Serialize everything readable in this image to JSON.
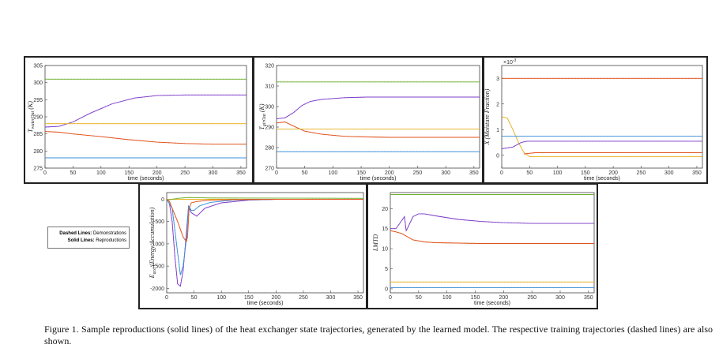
{
  "legend": {
    "line1_key": "Dashed Lines:",
    "line1_text": "Demonstrations",
    "line2_key": "Solid Lines:",
    "line2_text": "Reproductions"
  },
  "caption": "Figure 1.  Sample reproductions (solid lines) of the heat exchanger state trajectories, generated by the learned model. The respective training trajectories (dashed lines) are also shown.",
  "colors": {
    "purple": "#7d3cc8",
    "orange": "#e0501a",
    "yellow": "#e8b020",
    "green": "#70b030",
    "blue": "#3a8fd8"
  },
  "chart_data": [
    {
      "id": "p1",
      "type": "line",
      "ylabel": "T_{waterOut} (K)",
      "xlabel": "time (seconds)",
      "xlim": [
        0,
        360
      ],
      "ylim": [
        275,
        305
      ],
      "xticks": [
        0,
        50,
        100,
        150,
        200,
        250,
        300,
        350
      ],
      "yticks": [
        275,
        280,
        285,
        290,
        295,
        300,
        305
      ],
      "series": [
        {
          "color": "green",
          "x": [
            0,
            360
          ],
          "y": [
            301,
            301
          ]
        },
        {
          "color": "purple",
          "x": [
            0,
            25,
            50,
            80,
            120,
            160,
            200,
            250,
            300,
            360
          ],
          "y": [
            287,
            287.2,
            288.5,
            291,
            293.8,
            295.5,
            296.2,
            296.4,
            296.4,
            296.4
          ]
        },
        {
          "color": "yellow",
          "x": [
            0,
            360
          ],
          "y": [
            288,
            288
          ]
        },
        {
          "color": "orange",
          "x": [
            0,
            25,
            50,
            100,
            150,
            200,
            250,
            300,
            360
          ],
          "y": [
            285.7,
            285.5,
            285,
            284.2,
            283.3,
            282.6,
            282.2,
            282,
            282
          ]
        },
        {
          "color": "blue",
          "x": [
            0,
            360
          ],
          "y": [
            278,
            278
          ]
        }
      ]
    },
    {
      "id": "p2",
      "type": "line",
      "ylabel": "T_{airOut} (K)",
      "xlabel": "time (seconds)",
      "xlim": [
        0,
        360
      ],
      "ylim": [
        270,
        320
      ],
      "xticks": [
        0,
        50,
        100,
        150,
        200,
        250,
        300,
        350
      ],
      "yticks": [
        270,
        280,
        290,
        300,
        310,
        320
      ],
      "series": [
        {
          "color": "green",
          "x": [
            0,
            360
          ],
          "y": [
            312,
            312
          ]
        },
        {
          "color": "purple",
          "x": [
            0,
            15,
            30,
            45,
            60,
            80,
            120,
            160,
            200,
            360
          ],
          "y": [
            294,
            294.5,
            297,
            300.5,
            302.5,
            303.5,
            304.3,
            304.6,
            304.6,
            304.6
          ]
        },
        {
          "color": "orange",
          "x": [
            0,
            15,
            30,
            50,
            80,
            120,
            160,
            200,
            360
          ],
          "y": [
            292,
            292.5,
            290.5,
            288,
            286.5,
            285.5,
            285.2,
            285,
            285
          ]
        },
        {
          "color": "yellow",
          "x": [
            0,
            360
          ],
          "y": [
            289,
            289
          ]
        },
        {
          "color": "blue",
          "x": [
            0,
            360
          ],
          "y": [
            278,
            278
          ]
        }
      ]
    },
    {
      "id": "p3",
      "type": "line",
      "ylabel": "X (Moisture Fraction)",
      "xlabel": "time (seconds)",
      "exponent_label": "×10",
      "exponent_power": "-3",
      "xlim": [
        0,
        360
      ],
      "ylim": [
        -0.5,
        3.5
      ],
      "xticks": [
        0,
        50,
        100,
        150,
        200,
        250,
        300,
        350
      ],
      "yticks": [
        0,
        1,
        2,
        3
      ],
      "series": [
        {
          "color": "orange",
          "x": [
            0,
            360
          ],
          "y": [
            3.0,
            3.0
          ]
        },
        {
          "color": "yellow",
          "x": [
            0,
            10,
            20,
            30,
            40,
            50,
            360
          ],
          "y": [
            1.5,
            1.45,
            1.0,
            0.5,
            0.1,
            -0.05,
            -0.05
          ]
        },
        {
          "color": "blue",
          "x": [
            0,
            360
          ],
          "y": [
            0.75,
            0.75
          ]
        },
        {
          "color": "purple",
          "x": [
            0,
            20,
            35,
            45,
            60,
            360
          ],
          "y": [
            0.25,
            0.32,
            0.5,
            0.55,
            0.55,
            0.55
          ]
        },
        {
          "color": "orange",
          "x": [
            40,
            60,
            360
          ],
          "y": [
            0.05,
            0.1,
            0.1
          ]
        }
      ]
    },
    {
      "id": "p4",
      "type": "line",
      "ylabel": "E_{acc} (Energy Accumulation)",
      "xlabel": "time (seconds)",
      "xlim": [
        0,
        360
      ],
      "ylim": [
        -2100,
        150
      ],
      "xticks": [
        0,
        50,
        100,
        150,
        200,
        250,
        300,
        350
      ],
      "yticks": [
        -2000,
        -1500,
        -1000,
        -500,
        0
      ],
      "series": [
        {
          "color": "yellow",
          "x": [
            0,
            360
          ],
          "y": [
            0,
            0
          ]
        },
        {
          "color": "green",
          "x": [
            0,
            10,
            20,
            40,
            80,
            360
          ],
          "y": [
            -20,
            0,
            20,
            40,
            30,
            20
          ]
        },
        {
          "color": "purple",
          "x": [
            0,
            5,
            10,
            15,
            20,
            25,
            30,
            35,
            40,
            45,
            55,
            70,
            100,
            150,
            200,
            360
          ],
          "y": [
            0,
            -100,
            -500,
            -1300,
            -1900,
            -1950,
            -1600,
            -900,
            -150,
            -300,
            -380,
            -200,
            -80,
            -20,
            0,
            0
          ]
        },
        {
          "color": "blue",
          "x": [
            0,
            10,
            20,
            25,
            30,
            36,
            40,
            45,
            50,
            60,
            80,
            120,
            200,
            360
          ],
          "y": [
            0,
            -200,
            -1200,
            -1700,
            -1500,
            -900,
            -150,
            -250,
            -250,
            -150,
            -70,
            -20,
            0,
            0
          ]
        },
        {
          "color": "orange",
          "x": [
            0,
            5,
            10,
            20,
            30,
            36,
            38,
            41,
            45,
            55,
            80,
            120,
            200,
            360
          ],
          "y": [
            0,
            -50,
            -200,
            -500,
            -850,
            -950,
            -850,
            -200,
            -80,
            -50,
            -20,
            -10,
            0,
            0
          ]
        }
      ]
    },
    {
      "id": "p5",
      "type": "line",
      "ylabel": "LMTD",
      "xlabel": "time (seconds)",
      "xlim": [
        0,
        360
      ],
      "ylim": [
        -1,
        24
      ],
      "xticks": [
        0,
        50,
        100,
        150,
        200,
        250,
        300,
        350
      ],
      "yticks": [
        0,
        5,
        10,
        15,
        20
      ],
      "series": [
        {
          "color": "green",
          "x": [
            0,
            360
          ],
          "y": [
            23.5,
            23.5
          ]
        },
        {
          "color": "purple",
          "x": [
            0,
            10,
            25,
            28,
            30,
            40,
            50,
            60,
            80,
            120,
            160,
            200,
            250,
            300,
            360
          ],
          "y": [
            15,
            15,
            18,
            14.5,
            15,
            18,
            18.7,
            18.7,
            18.2,
            17.3,
            16.8,
            16.5,
            16.3,
            16.3,
            16.3
          ]
        },
        {
          "color": "orange",
          "x": [
            0,
            10,
            20,
            30,
            40,
            60,
            80,
            120,
            160,
            200,
            360
          ],
          "y": [
            14.5,
            14.2,
            13.8,
            13,
            12.2,
            11.7,
            11.5,
            11.4,
            11.3,
            11.3,
            11.3
          ]
        },
        {
          "color": "yellow",
          "x": [
            0,
            360
          ],
          "y": [
            1.7,
            1.7
          ]
        },
        {
          "color": "blue",
          "x": [
            0,
            360
          ],
          "y": [
            0.3,
            0.3
          ]
        }
      ]
    }
  ]
}
